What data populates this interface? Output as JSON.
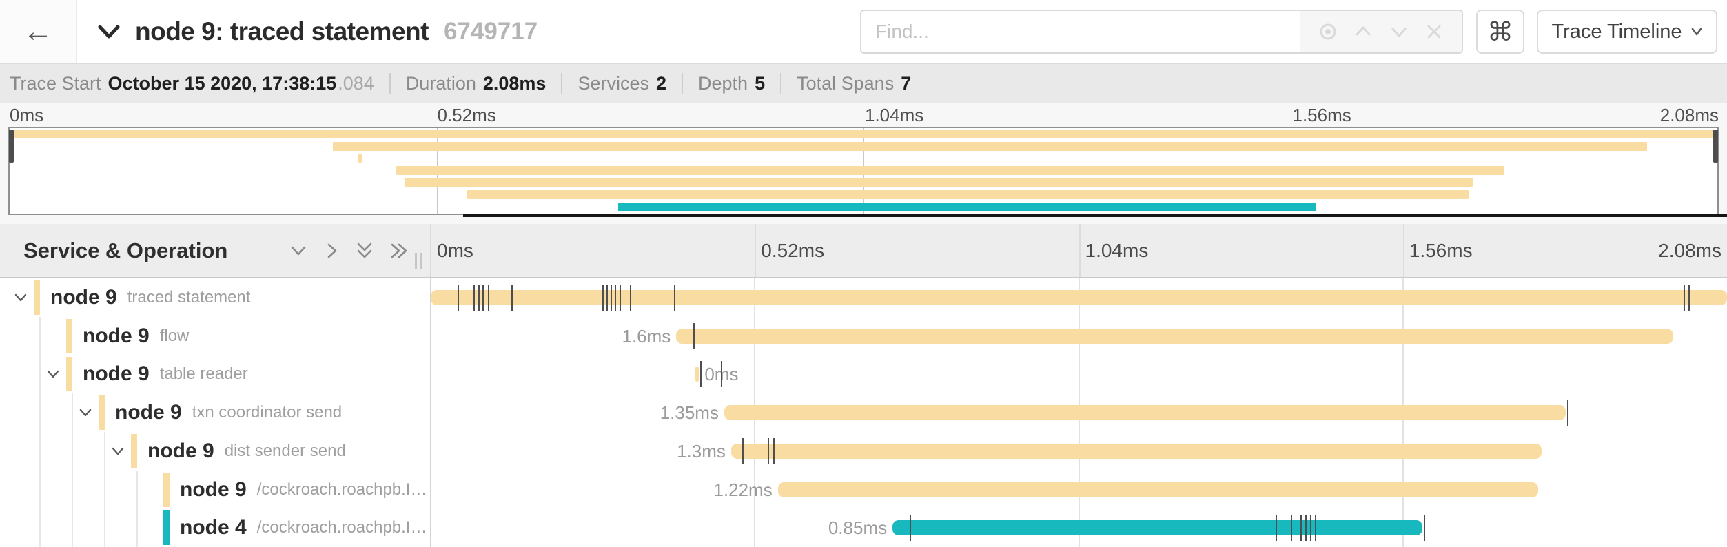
{
  "icons": {
    "back": "←",
    "command": "⌘"
  },
  "header": {
    "title": "node 9: traced statement",
    "trace_id": "6749717",
    "find": {
      "placeholder": "Find..."
    },
    "view_selector": "Trace Timeline"
  },
  "summary_bar": {
    "items": [
      {
        "label": "Trace Start",
        "value": "October 15 2020, 17:38:15",
        "suffix": ".084"
      },
      {
        "label": "Duration",
        "value": "2.08ms"
      },
      {
        "label": "Services",
        "value": "2"
      },
      {
        "label": "Depth",
        "value": "5"
      },
      {
        "label": "Total Spans",
        "value": "7"
      }
    ]
  },
  "minimap": {
    "axis_ticks": [
      "0ms",
      "0.52ms",
      "1.04ms",
      "1.56ms",
      "2.08ms"
    ]
  },
  "timeline_header": {
    "title": "Service & Operation",
    "axis_ticks": [
      "0ms",
      "0.52ms",
      "1.04ms",
      "1.56ms",
      "2.08ms"
    ]
  },
  "colors": {
    "span_yellow": "#F8DCA1",
    "span_teal": "#17B8BE"
  },
  "trace": {
    "total_duration_ms": 2.08,
    "rows": [
      {
        "service": "node 9",
        "operation": "traced statement",
        "depth": 0,
        "has_children": true,
        "color": "#F8DCA1",
        "start_ms": 0,
        "duration_ms": 2.08,
        "duration_label": "",
        "label_side": "none",
        "ticks_ms": [
          0.043,
          0.069,
          0.076,
          0.083,
          0.092,
          0.129,
          0.275,
          0.282,
          0.289,
          0.295,
          0.303,
          0.32,
          0.39,
          2.01,
          2.018
        ]
      },
      {
        "service": "node 9",
        "operation": "flow",
        "depth": 1,
        "has_children": false,
        "color": "#F8DCA1",
        "start_ms": 0.394,
        "duration_ms": 1.6,
        "duration_label": "1.6ms",
        "label_side": "left",
        "ticks_ms": [
          0.421
        ]
      },
      {
        "service": "node 9",
        "operation": "table reader",
        "depth": 1,
        "has_children": true,
        "color": "#F8DCA1",
        "start_ms": 0.425,
        "duration_ms": 0.004,
        "duration_label": "0ms",
        "label_side": "right",
        "ticks_ms": [
          0.432,
          0.465
        ]
      },
      {
        "service": "node 9",
        "operation": "txn coordinator send",
        "depth": 2,
        "has_children": true,
        "color": "#F8DCA1",
        "start_ms": 0.471,
        "duration_ms": 1.35,
        "duration_label": "1.35ms",
        "label_side": "left",
        "ticks_ms": [
          1.823
        ]
      },
      {
        "service": "node 9",
        "operation": "dist sender send",
        "depth": 3,
        "has_children": true,
        "color": "#F8DCA1",
        "start_ms": 0.482,
        "duration_ms": 1.3,
        "duration_label": "1.3ms",
        "label_side": "left",
        "ticks_ms": [
          0.5,
          0.541,
          0.55
        ]
      },
      {
        "service": "node 9",
        "operation": "/cockroach.roachpb.I…",
        "depth": 4,
        "has_children": false,
        "color": "#F8DCA1",
        "start_ms": 0.557,
        "duration_ms": 1.22,
        "duration_label": "1.22ms",
        "label_side": "left",
        "ticks_ms": []
      },
      {
        "service": "node 4",
        "operation": "/cockroach.roachpb.I…",
        "depth": 4,
        "has_children": false,
        "color": "#17B8BE",
        "start_ms": 0.741,
        "duration_ms": 0.85,
        "duration_label": "0.85ms",
        "label_side": "left",
        "ticks_ms": [
          0.768,
          1.356,
          1.38,
          1.396,
          1.403,
          1.411,
          1.419,
          1.594
        ]
      }
    ]
  }
}
